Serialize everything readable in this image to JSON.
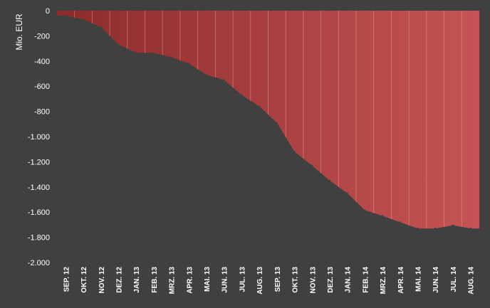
{
  "chart_data": {
    "type": "area",
    "title": "",
    "xlabel": "",
    "ylabel": "Mio. EUR",
    "ylim": [
      -2000,
      0
    ],
    "yticks": [
      0,
      -200,
      -400,
      -600,
      -800,
      -1000,
      -1200,
      -1400,
      -1600,
      -1800,
      -2000
    ],
    "ytick_labels": [
      "0",
      "-200",
      "-400",
      "-600",
      "-800",
      "-1.000",
      "-1.200",
      "-1.400",
      "-1.600",
      "-1.800",
      "-2.000"
    ],
    "categories": [
      "SEP. 12",
      "OKT. 12",
      "NOV. 12",
      "DEZ. 12",
      "JAN. 13",
      "FEB. 13",
      "MRZ. 13",
      "APR. 13",
      "MAI. 13",
      "JUN. 13",
      "JUL. 13",
      "AUG. 13",
      "SEP. 13",
      "OKT. 13",
      "NOV. 13",
      "DEZ. 13",
      "JAN. 14",
      "FEB. 14",
      "MRZ. 14",
      "APR. 14",
      "MAI. 14",
      "JUN. 14",
      "JUL. 14",
      "AUG. 14"
    ],
    "series": [
      {
        "values": [
          -40,
          -70,
          -130,
          -270,
          -335,
          -335,
          -370,
          -420,
          -510,
          -550,
          -670,
          -760,
          -890,
          -1120,
          -1230,
          -1350,
          -1450,
          -1585,
          -1630,
          -1680,
          -1730,
          -1730,
          -1705,
          -1730
        ]
      }
    ],
    "colors": {
      "background": "#404040",
      "fill_start": "#8c2b2b",
      "fill_end": "#c65454",
      "separator": "#e2a0a0",
      "text": "#ffffff"
    },
    "grid": false,
    "legend": "none"
  }
}
